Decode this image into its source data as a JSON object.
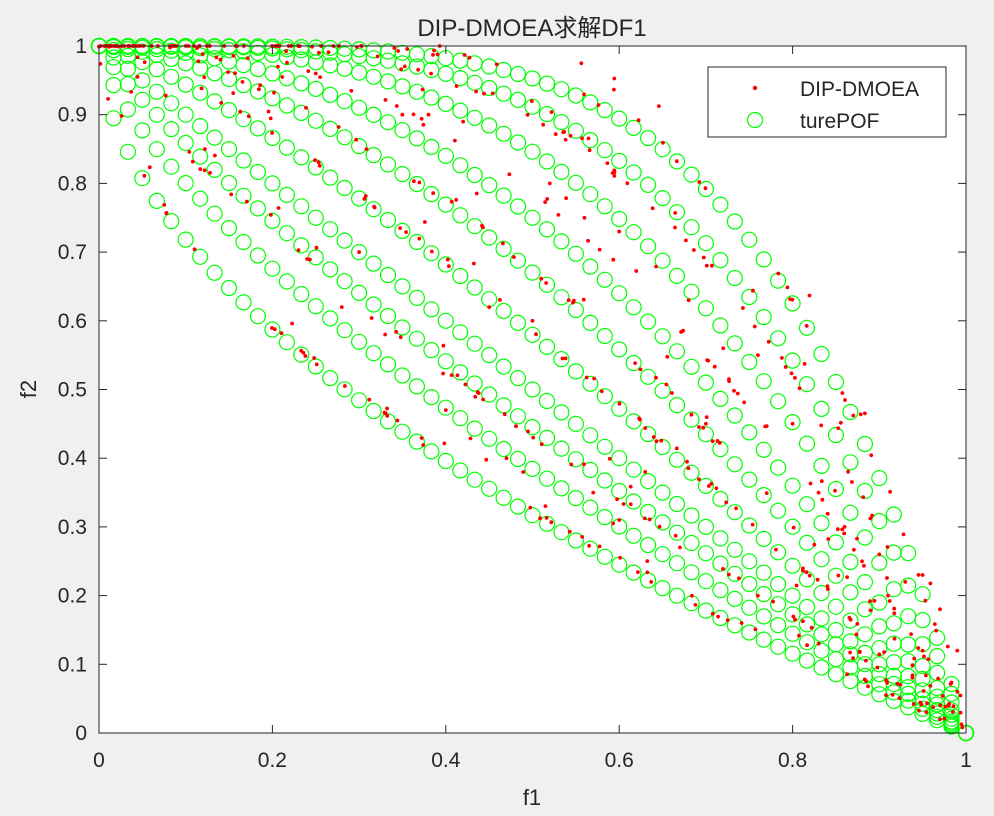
{
  "chart_data": {
    "type": "scatter",
    "title": "DIP-DMOEA求解DF1",
    "xlabel": "f1",
    "ylabel": "f2",
    "xlim": [
      0,
      1
    ],
    "ylim": [
      0,
      1
    ],
    "x_ticks": [
      "0",
      "0.2",
      "0.4",
      "0.6",
      "0.8",
      "1"
    ],
    "y_ticks": [
      "0",
      "0.1",
      "0.2",
      "0.3",
      "0.4",
      "0.5",
      "0.6",
      "0.7",
      "0.8",
      "0.9",
      "1"
    ],
    "grid": false,
    "legend_position": "top-right",
    "legend": [
      "DIP-DMOEA",
      "turePOF"
    ],
    "series": [
      {
        "name": "DIP-DMOEA",
        "marker": "dot",
        "color": "#ff0000",
        "fronts_exponent_h": [
          0.55,
          0.8,
          1.25,
          1.6,
          2.2,
          3.2,
          4.4
        ],
        "extra_points": [
          [
            0.14,
            0.98
          ],
          [
            0.25,
            0.96
          ],
          [
            0.35,
            0.9
          ],
          [
            0.38,
            0.9
          ],
          [
            0.42,
            0.89
          ],
          [
            0.52,
            0.8
          ],
          [
            0.56,
            0.75
          ],
          [
            0.6,
            0.73
          ],
          [
            0.68,
            0.63
          ],
          [
            0.72,
            0.56
          ],
          [
            0.76,
            0.55
          ],
          [
            0.8,
            0.45
          ],
          [
            0.83,
            0.35
          ],
          [
            0.86,
            0.3
          ],
          [
            0.9,
            0.26
          ],
          [
            0.93,
            0.22
          ],
          [
            0.95,
            0.23
          ],
          [
            0.97,
            0.18
          ],
          [
            0.99,
            0.12
          ],
          [
            0.99,
            0.06
          ],
          [
            0.98,
            0.04
          ],
          [
            0.97,
            0.02
          ],
          [
            0.88,
            0.25
          ],
          [
            0.91,
            0.2
          ],
          [
            0.95,
            0.12
          ],
          [
            0.63,
            0.38
          ],
          [
            0.7,
            0.45
          ],
          [
            0.5,
            0.6
          ],
          [
            0.45,
            0.62
          ],
          [
            0.3,
            0.7
          ],
          [
            0.24,
            0.69
          ],
          [
            0.28,
            0.62
          ],
          [
            0.33,
            0.58
          ],
          [
            0.4,
            0.47
          ],
          [
            0.47,
            0.4
          ],
          [
            0.57,
            0.35
          ],
          [
            0.6,
            0.31
          ],
          [
            0.67,
            0.27
          ],
          [
            0.76,
            0.2
          ],
          [
            0.83,
            0.13
          ]
        ]
      },
      {
        "name": "turePOF",
        "marker": "circle",
        "color": "#00ff00",
        "fronts_exponent_h": [
          0.55,
          0.7,
          0.85,
          1.0,
          1.25,
          1.6,
          2.0,
          2.7,
          3.5,
          4.4
        ],
        "points_per_front": 60
      }
    ]
  }
}
